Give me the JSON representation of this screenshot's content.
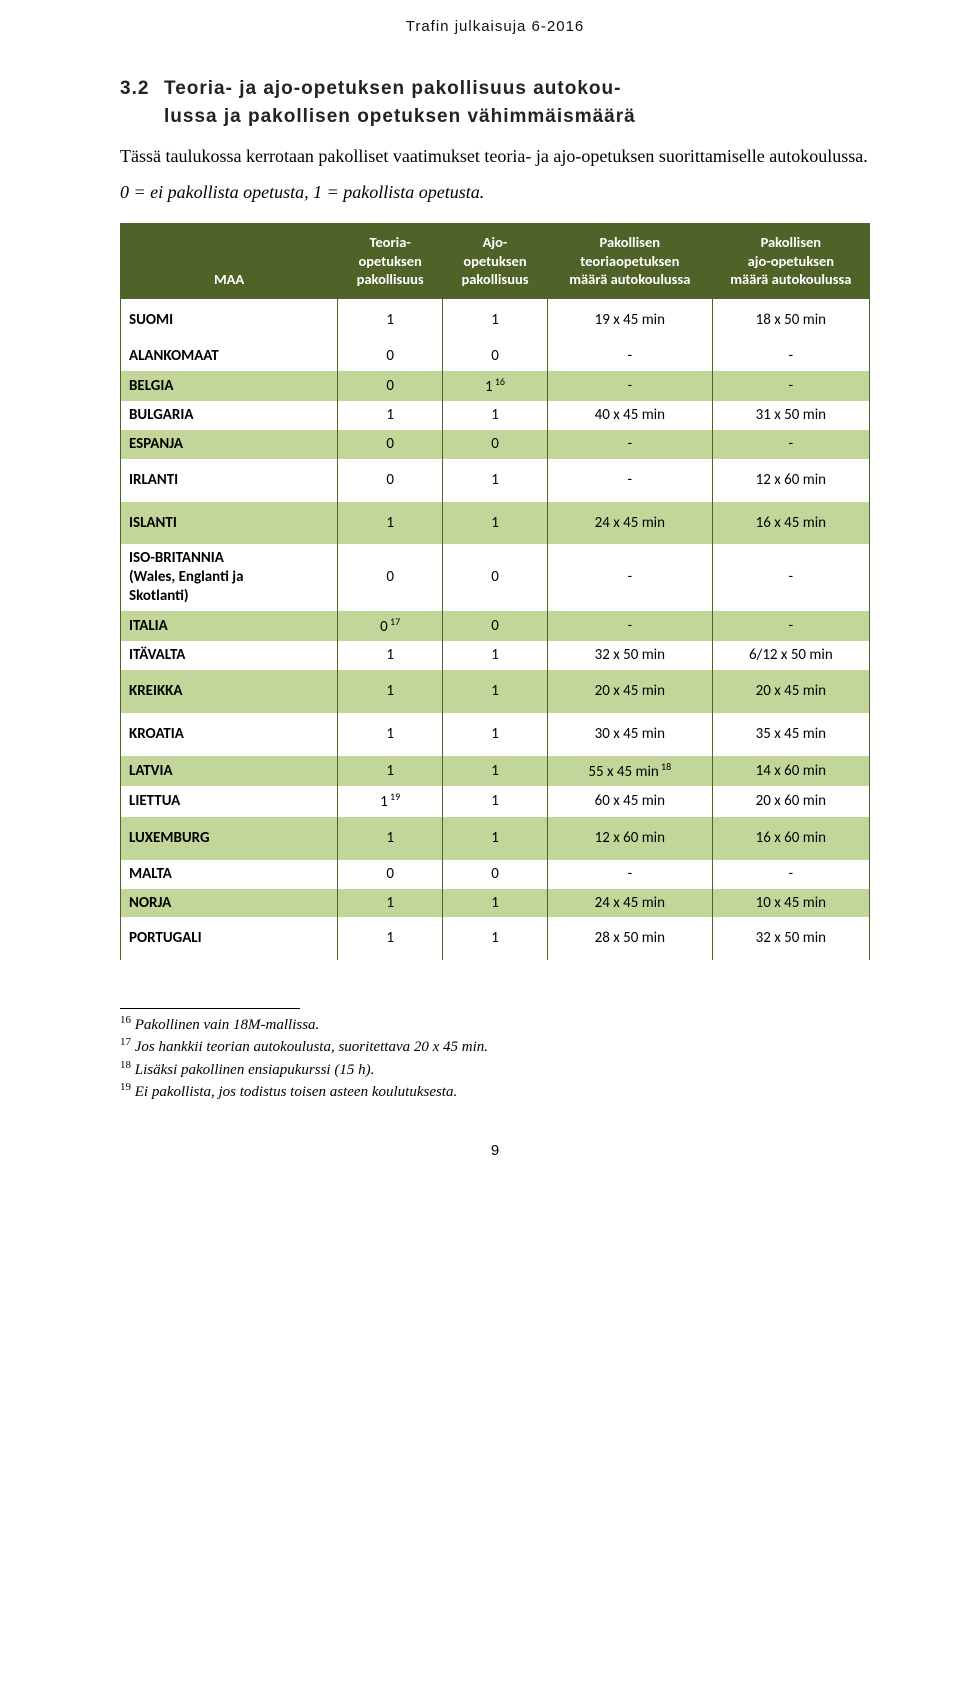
{
  "header": "Trafin julkaisuja 6-2016",
  "section_number": "3.2",
  "section_title_l1": "Teoria- ja ajo-opetuksen pakollisuus autokou-",
  "section_title_l2": "lussa ja pakollisen opetuksen vähimmäismäärä",
  "para1": "Tässä taulukossa kerrotaan pakolliset vaatimukset teoria- ja ajo-opetuksen suorittamiselle autokoulussa.",
  "para2": "0 = ei pakollista opetusta, 1 = pakollista opetusta.",
  "table": {
    "columns": {
      "maa": "MAA",
      "teo": "Teoria-\nopetuksen\npakollisuus",
      "ajo": "Ajo-\nopetuksen\npakollisuus",
      "pteo": "Pakollisen\nteoriaopetuksen\nmäärä autokoulussa",
      "pajo": "Pakollisen\najo-opetuksen\nmäärä autokoulussa"
    },
    "rows": [
      {
        "band": "white",
        "tall": true,
        "maa": "SUOMI",
        "teo": "1",
        "ajo": "1",
        "pteo": "19 x 45 min",
        "pajo": "18 x 50 min"
      },
      {
        "band": "white",
        "maa": "ALANKOMAAT",
        "teo": "0",
        "ajo": "0",
        "pteo": "-",
        "pajo": "-"
      },
      {
        "band": "green",
        "maa": "BELGIA",
        "teo": "0",
        "ajo": "1",
        "ajo_sup": "16",
        "pteo": "-",
        "pajo": "-"
      },
      {
        "band": "white",
        "maa": "BULGARIA",
        "teo": "1",
        "ajo": "1",
        "pteo": "40 x 45 min",
        "pajo": "31 x 50 min"
      },
      {
        "band": "green",
        "maa": "ESPANJA",
        "teo": "0",
        "ajo": "0",
        "pteo": "-",
        "pajo": "-"
      },
      {
        "band": "white",
        "tall": true,
        "maa": "IRLANTI",
        "teo": "0",
        "ajo": "1",
        "pteo": "-",
        "pajo": "12 x 60 min"
      },
      {
        "band": "green",
        "tall": true,
        "maa": "ISLANTI",
        "teo": "1",
        "ajo": "1",
        "pteo": "24 x 45 min",
        "pajo": "16 x 45 min"
      },
      {
        "band": "white",
        "maa": "ISO-BRITANNIA\n(Wales, Englanti ja\nSkotlanti)",
        "teo": "0",
        "ajo": "0",
        "pteo": "-",
        "pajo": "-"
      },
      {
        "band": "green",
        "maa": "ITALIA",
        "teo": "0",
        "teo_sup": "17",
        "ajo": "0",
        "pteo": "-",
        "pajo": "-"
      },
      {
        "band": "white",
        "maa": "ITÄVALTA",
        "teo": "1",
        "ajo": "1",
        "pteo": "32 x 50 min",
        "pajo": "6/12 x 50 min"
      },
      {
        "band": "green",
        "tall": true,
        "maa": "KREIKKA",
        "teo": "1",
        "ajo": "1",
        "pteo": "20 x 45 min",
        "pajo": "20 x 45 min"
      },
      {
        "band": "white",
        "tall": true,
        "maa": "KROATIA",
        "teo": "1",
        "ajo": "1",
        "pteo": "30 x 45 min",
        "pajo": "35 x 45 min"
      },
      {
        "band": "green",
        "maa": "LATVIA",
        "teo": "1",
        "ajo": "1",
        "pteo": "55 x 45 min",
        "pteo_sup": "18",
        "pajo": "14 x 60 min"
      },
      {
        "band": "white",
        "maa": "LIETTUA",
        "teo": "1",
        "teo_sup": "19",
        "ajo": "1",
        "pteo": "60 x 45 min",
        "pajo": "20 x 60 min"
      },
      {
        "band": "green",
        "tall": true,
        "maa": "LUXEMBURG",
        "teo": "1",
        "ajo": "1",
        "pteo": "12 x 60 min",
        "pajo": "16 x 60 min"
      },
      {
        "band": "white",
        "maa": "MALTA",
        "teo": "0",
        "ajo": "0",
        "pteo": "-",
        "pajo": "-"
      },
      {
        "band": "green",
        "maa": "NORJA",
        "teo": "1",
        "ajo": "1",
        "pteo": "24 x 45 min",
        "pajo": "10 x 45 min"
      },
      {
        "band": "white",
        "tall": true,
        "maa": "PORTUGALI",
        "teo": "1",
        "ajo": "1",
        "pteo": "28 x 50 min",
        "pajo": "32 x 50 min"
      }
    ]
  },
  "footnotes": [
    {
      "num": "16",
      "text": "Pakollinen vain 18M-mallissa."
    },
    {
      "num": "17",
      "text": "Jos hankkii teorian autokoulusta, suoritettava 20 x 45 min."
    },
    {
      "num": "18",
      "text": "Lisäksi pakollinen ensiapukurssi (15 h)."
    },
    {
      "num": "19",
      "text": "Ei pakollista, jos todistus toisen asteen koulutuksesta."
    }
  ],
  "page_number": "9",
  "colors": {
    "header_bg": "#4f6228",
    "row_green": "#c2d69a",
    "row_white": "#ffffff"
  }
}
